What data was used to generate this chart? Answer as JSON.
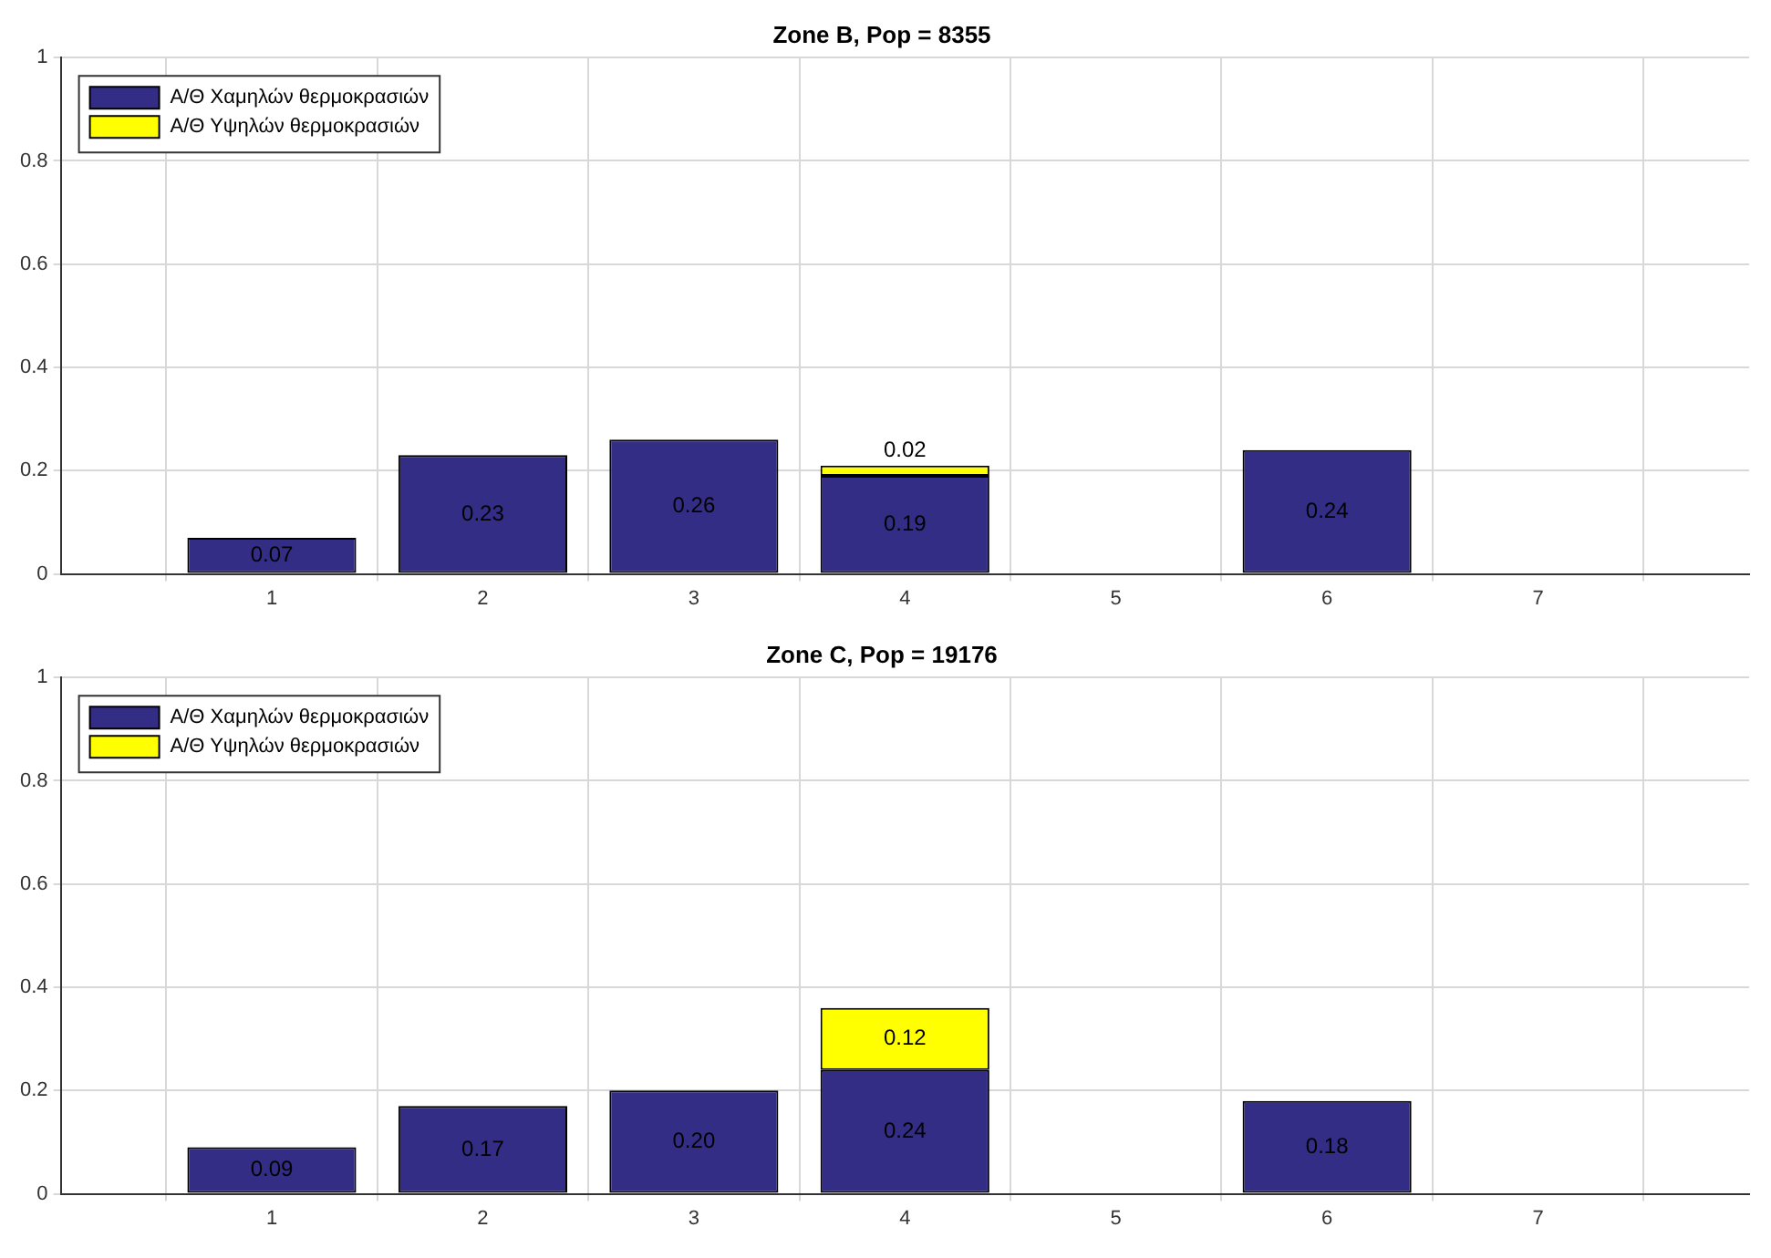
{
  "chart_data": [
    {
      "type": "bar",
      "stacked": true,
      "title": "Zone B, Pop = 8355",
      "x": [
        1,
        2,
        3,
        4,
        5,
        6,
        7
      ],
      "xlim": [
        0,
        8
      ],
      "xticks": [
        1,
        2,
        3,
        4,
        5,
        6,
        7
      ],
      "ylim": [
        0,
        1
      ],
      "yticks": [
        0,
        0.2,
        0.4,
        0.6,
        0.8,
        1
      ],
      "grid": true,
      "legend": "top left",
      "series": [
        {
          "name": "Α/Θ Χαμηλών θερμοκρασιών",
          "color": "#332d85",
          "values": [
            0.07,
            0.23,
            0.26,
            0.19,
            0,
            0.24,
            0
          ],
          "value_labels": [
            "0.07",
            "0.23",
            "0.26",
            "0.19",
            null,
            "0.24",
            null
          ]
        },
        {
          "name": "Α/Θ Υψηλών θερμοκρασιών",
          "color": "#ffff00",
          "values": [
            null,
            null,
            null,
            0.02,
            null,
            null,
            null
          ],
          "value_labels": [
            null,
            null,
            null,
            "0.02",
            null,
            null,
            null
          ]
        }
      ]
    },
    {
      "type": "bar",
      "stacked": true,
      "title": "Zone C, Pop = 19176",
      "x": [
        1,
        2,
        3,
        4,
        5,
        6,
        7
      ],
      "xlim": [
        0,
        8
      ],
      "xticks": [
        1,
        2,
        3,
        4,
        5,
        6,
        7
      ],
      "ylim": [
        0,
        1
      ],
      "yticks": [
        0,
        0.2,
        0.4,
        0.6,
        0.8,
        1
      ],
      "grid": true,
      "legend": "top left",
      "series": [
        {
          "name": "Α/Θ Χαμηλών θερμοκρασιών",
          "color": "#332d85",
          "values": [
            0.09,
            0.17,
            0.2,
            0.24,
            0,
            0.18,
            0
          ],
          "value_labels": [
            "0.09",
            "0.17",
            "0.20",
            "0.24",
            null,
            "0.18",
            null
          ]
        },
        {
          "name": "Α/Θ Υψηλών θερμοκρασιών",
          "color": "#ffff00",
          "values": [
            null,
            null,
            null,
            0.12,
            null,
            null,
            null
          ],
          "value_labels": [
            null,
            null,
            null,
            "0.12",
            null,
            null,
            null
          ]
        }
      ]
    }
  ]
}
